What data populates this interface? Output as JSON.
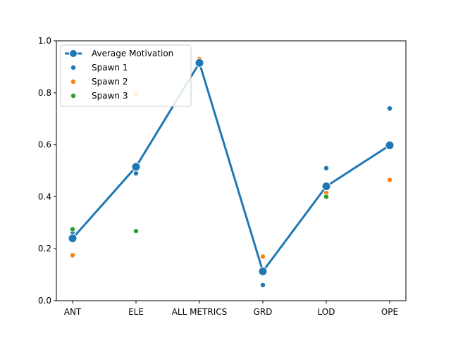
{
  "chart_data": {
    "type": "line",
    "categories": [
      "ANT",
      "ELE",
      "ALL METRICS",
      "GRD",
      "LOD",
      "OPE"
    ],
    "ylim": [
      0.0,
      1.0
    ],
    "yticks": [
      "0.0",
      "0.2",
      "0.4",
      "0.6",
      "0.8",
      "1.0"
    ],
    "grid": false,
    "legend_position": "top-left",
    "series": [
      {
        "name": "Average Motivation",
        "kind": "line",
        "color": "#1f77b4",
        "values": [
          0.24,
          0.515,
          0.915,
          0.113,
          0.44,
          0.598
        ]
      },
      {
        "name": "Spawn 1",
        "kind": "scatter",
        "color": "#1f77b4",
        "values": [
          0.265,
          0.49,
          0.925,
          0.06,
          0.51,
          0.74
        ]
      },
      {
        "name": "Spawn 2",
        "kind": "scatter",
        "color": "#ff7f0e",
        "values": [
          0.175,
          0.795,
          0.93,
          0.17,
          0.415,
          0.465
        ]
      },
      {
        "name": "Spawn 3",
        "kind": "scatter",
        "color": "#2ca02c",
        "values": [
          0.275,
          0.268,
          null,
          null,
          0.4,
          null
        ]
      }
    ]
  }
}
